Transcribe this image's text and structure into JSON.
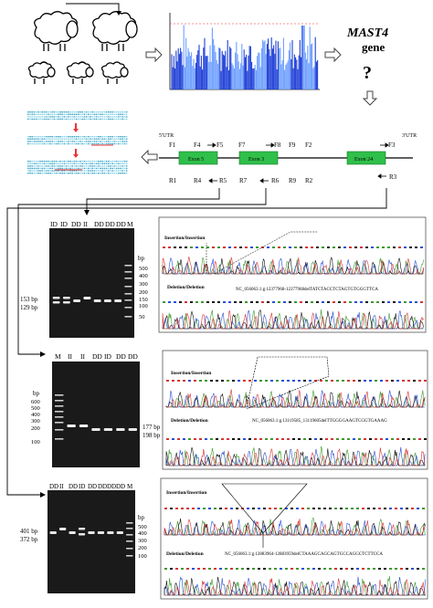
{
  "title": {
    "gene": "MAST4",
    "gene_suffix": "gene",
    "question": "?"
  },
  "utr": {
    "left": "5'UTR",
    "right": "3'UTR"
  },
  "exons": [
    "Exon 5",
    "Exon 3",
    "Exon 24"
  ],
  "primers_top": [
    "F1",
    "F4",
    "F5",
    "F7",
    "F8",
    "F9",
    "F2",
    "F3"
  ],
  "primers_bottom": [
    "R1",
    "R4",
    "R5",
    "R7",
    "R6",
    "R9",
    "R2",
    "R3"
  ],
  "gels": [
    {
      "lanes": [
        "ID",
        "ID",
        "DD",
        "II",
        "DD",
        "DD",
        "DD",
        "M"
      ],
      "bands_left": [
        "153 bp",
        "129 bp"
      ],
      "ladder_unit": "bp",
      "ladder": [
        "500",
        "400",
        "300",
        "200",
        "150",
        "100",
        "50"
      ]
    },
    {
      "lanes": [
        "M",
        "II",
        "II",
        "DD",
        "ID",
        "DD",
        "DD"
      ],
      "ladder_unit": "bp",
      "ladder": [
        "600",
        "500",
        "400",
        "300",
        "200",
        "100"
      ],
      "bands_right": [
        "177 bp",
        "198 bp"
      ]
    },
    {
      "lanes": [
        "DD",
        "II",
        "DD",
        "ID",
        "DD",
        "DD",
        "DD",
        "DD",
        "M"
      ],
      "bands_left": [
        "401 bp",
        "372 bp"
      ],
      "ladder_unit": "bp",
      "ladder": [
        "500",
        "400",
        "300",
        "200",
        "100"
      ]
    }
  ],
  "chromatograms": [
    {
      "top_label": "Insertion/Insertion",
      "bottom_label": "Deletion/Deletion",
      "sequence": "NC_056063.1:g.12377968-12377968delTATCTACCTCTAGTGTGGGTTCA"
    },
    {
      "top_label": "Insertion/Insertion",
      "bottom_label": "Deletion/Deletion",
      "sequence": "NC_056063.1:g.13119585_13119605delTTGGGGAAGTCGGTGAAAG"
    },
    {
      "top_label": "Insertion/Insertion",
      "bottom_label": "Deletion/Deletion",
      "sequence": "NC_056063.1:g.12883964-12883959delCTAAAGCAGCAGTGCCAGGCTCTTCCA"
    }
  ],
  "colors": {
    "manhattan_a": "#1f3fd6",
    "manhattan_b": "#6ea0ff",
    "exon": "#2fbf4a",
    "question": "#e01010",
    "trace_a": "#3d9a2e",
    "trace_b": "#2a4fd8",
    "trace_c": "#111111",
    "trace_d": "#d83434"
  }
}
